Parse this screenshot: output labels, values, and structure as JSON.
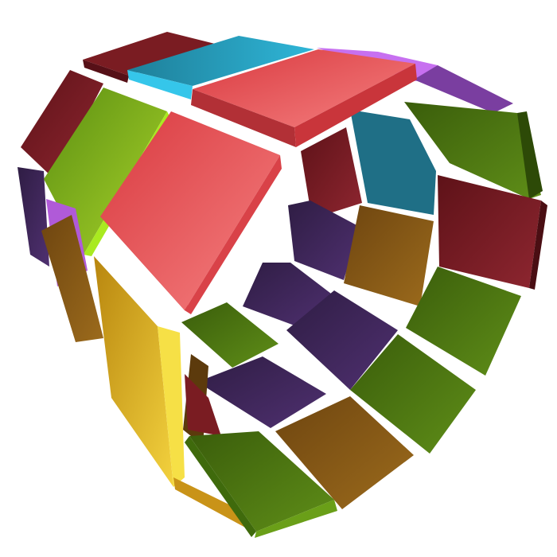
{
  "colors": {
    "background": "#ffffff",
    "red": "#e84a4f",
    "salmon": "#f07171",
    "teal": "#2aa6c4",
    "violet": "#c770f0",
    "lime": "#8fc21a",
    "olive_green": "#4d7a10",
    "yellow": "#e7b82f",
    "amber": "#8a5a14",
    "purple": "#43285c",
    "dark_red": "#7a1c22"
  },
  "scene": {
    "shape": "ring of tiles",
    "tile_colors_in_view": [
      "red",
      "salmon",
      "teal",
      "violet",
      "lime",
      "olive_green",
      "yellow",
      "amber",
      "purple",
      "dark_red"
    ]
  }
}
